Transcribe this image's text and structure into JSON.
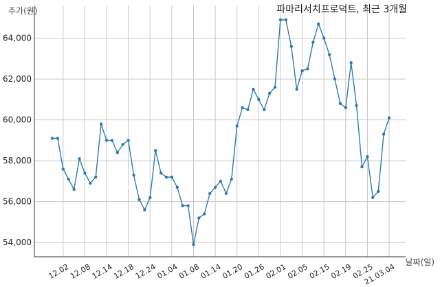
{
  "chart_data": {
    "type": "line",
    "title": "파마리서치프로덕트, 최근 3개월",
    "ylabel": "주가(원)",
    "xlabel": "날짜(일)",
    "ylim": [
      53300,
      65600
    ],
    "yticks": [
      54000,
      56000,
      58000,
      60000,
      62000,
      64000
    ],
    "ytick_labels": [
      "54,000",
      "56,000",
      "58,000",
      "60,000",
      "62,000",
      "64,000"
    ],
    "xtick_positions": [
      2,
      6,
      10,
      14,
      18,
      22,
      26,
      30,
      34,
      38,
      42,
      46,
      50,
      54,
      58,
      62
    ],
    "xtick_labels": [
      "12.02",
      "12.08",
      "12.14",
      "12.18",
      "12.24",
      "01.04",
      "01.08",
      "01.14",
      "01.20",
      "01.26",
      "02.01",
      "02.05",
      "02.15",
      "02.19",
      "02.25",
      "21.03.04"
    ],
    "grid": true,
    "color": "#2b7bb0",
    "series": [
      {
        "values": [
          59100,
          59100,
          57600,
          57100,
          56600,
          58100,
          57400,
          56900,
          57200,
          59800,
          59000,
          59000,
          58400,
          58800,
          59000,
          57300,
          56100,
          55600,
          56200,
          58500,
          57400,
          57200,
          57200,
          56700,
          55800,
          55800,
          53900,
          55200,
          55400,
          56400,
          56700,
          57000,
          56400,
          57100,
          59700,
          60600,
          60500,
          61500,
          61000,
          60500,
          61300,
          61600,
          64900,
          64900,
          63600,
          61500,
          62400,
          62500,
          63800,
          64700,
          64000,
          63200,
          62000,
          60800,
          60600,
          62800,
          60700,
          57700,
          58200,
          56200,
          56500,
          59300,
          60100
        ]
      }
    ]
  }
}
